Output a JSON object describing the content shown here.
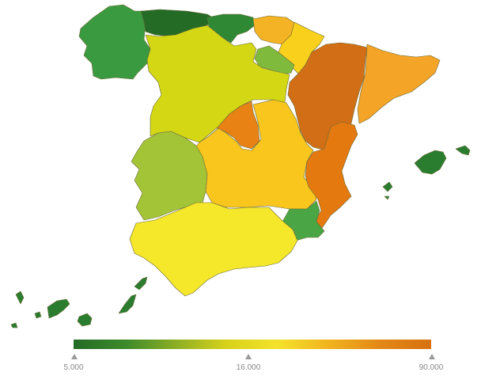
{
  "map": {
    "type": "choropleth",
    "regions": [
      {
        "id": "galicia",
        "color": "#3a9a3f"
      },
      {
        "id": "asturias",
        "color": "#246b26"
      },
      {
        "id": "cantabria",
        "color": "#2f8834"
      },
      {
        "id": "pais-vasco",
        "color": "#f4b324"
      },
      {
        "id": "navarra",
        "color": "#f9d11c"
      },
      {
        "id": "la-rioja",
        "color": "#7fba3c"
      },
      {
        "id": "aragon",
        "color": "#d26f16"
      },
      {
        "id": "cataluna",
        "color": "#f4a427"
      },
      {
        "id": "castilla-y-leon",
        "color": "#d4d814"
      },
      {
        "id": "madrid",
        "color": "#e88214"
      },
      {
        "id": "castilla-la-mancha",
        "color": "#f9c61e"
      },
      {
        "id": "extremadura",
        "color": "#a4c437"
      },
      {
        "id": "comunidad-valenciana",
        "color": "#e4790f"
      },
      {
        "id": "murcia",
        "color": "#4aa644"
      },
      {
        "id": "andalucia",
        "color": "#f5e72a"
      },
      {
        "id": "islas-baleares",
        "color": "#2a7d2e"
      },
      {
        "id": "islas-canarias",
        "color": "#2a7d2e"
      }
    ]
  },
  "legend": {
    "gradient": [
      "#246b26",
      "#3c8a2a",
      "#8cae25",
      "#d8d21a",
      "#f4e22a",
      "#f1b31e",
      "#e38816",
      "#d6710f"
    ],
    "ticks": [
      {
        "label": "5.000",
        "value": 5000
      },
      {
        "label": "16.000",
        "value": 16000
      },
      {
        "label": "90.000",
        "value": 90000
      }
    ]
  }
}
